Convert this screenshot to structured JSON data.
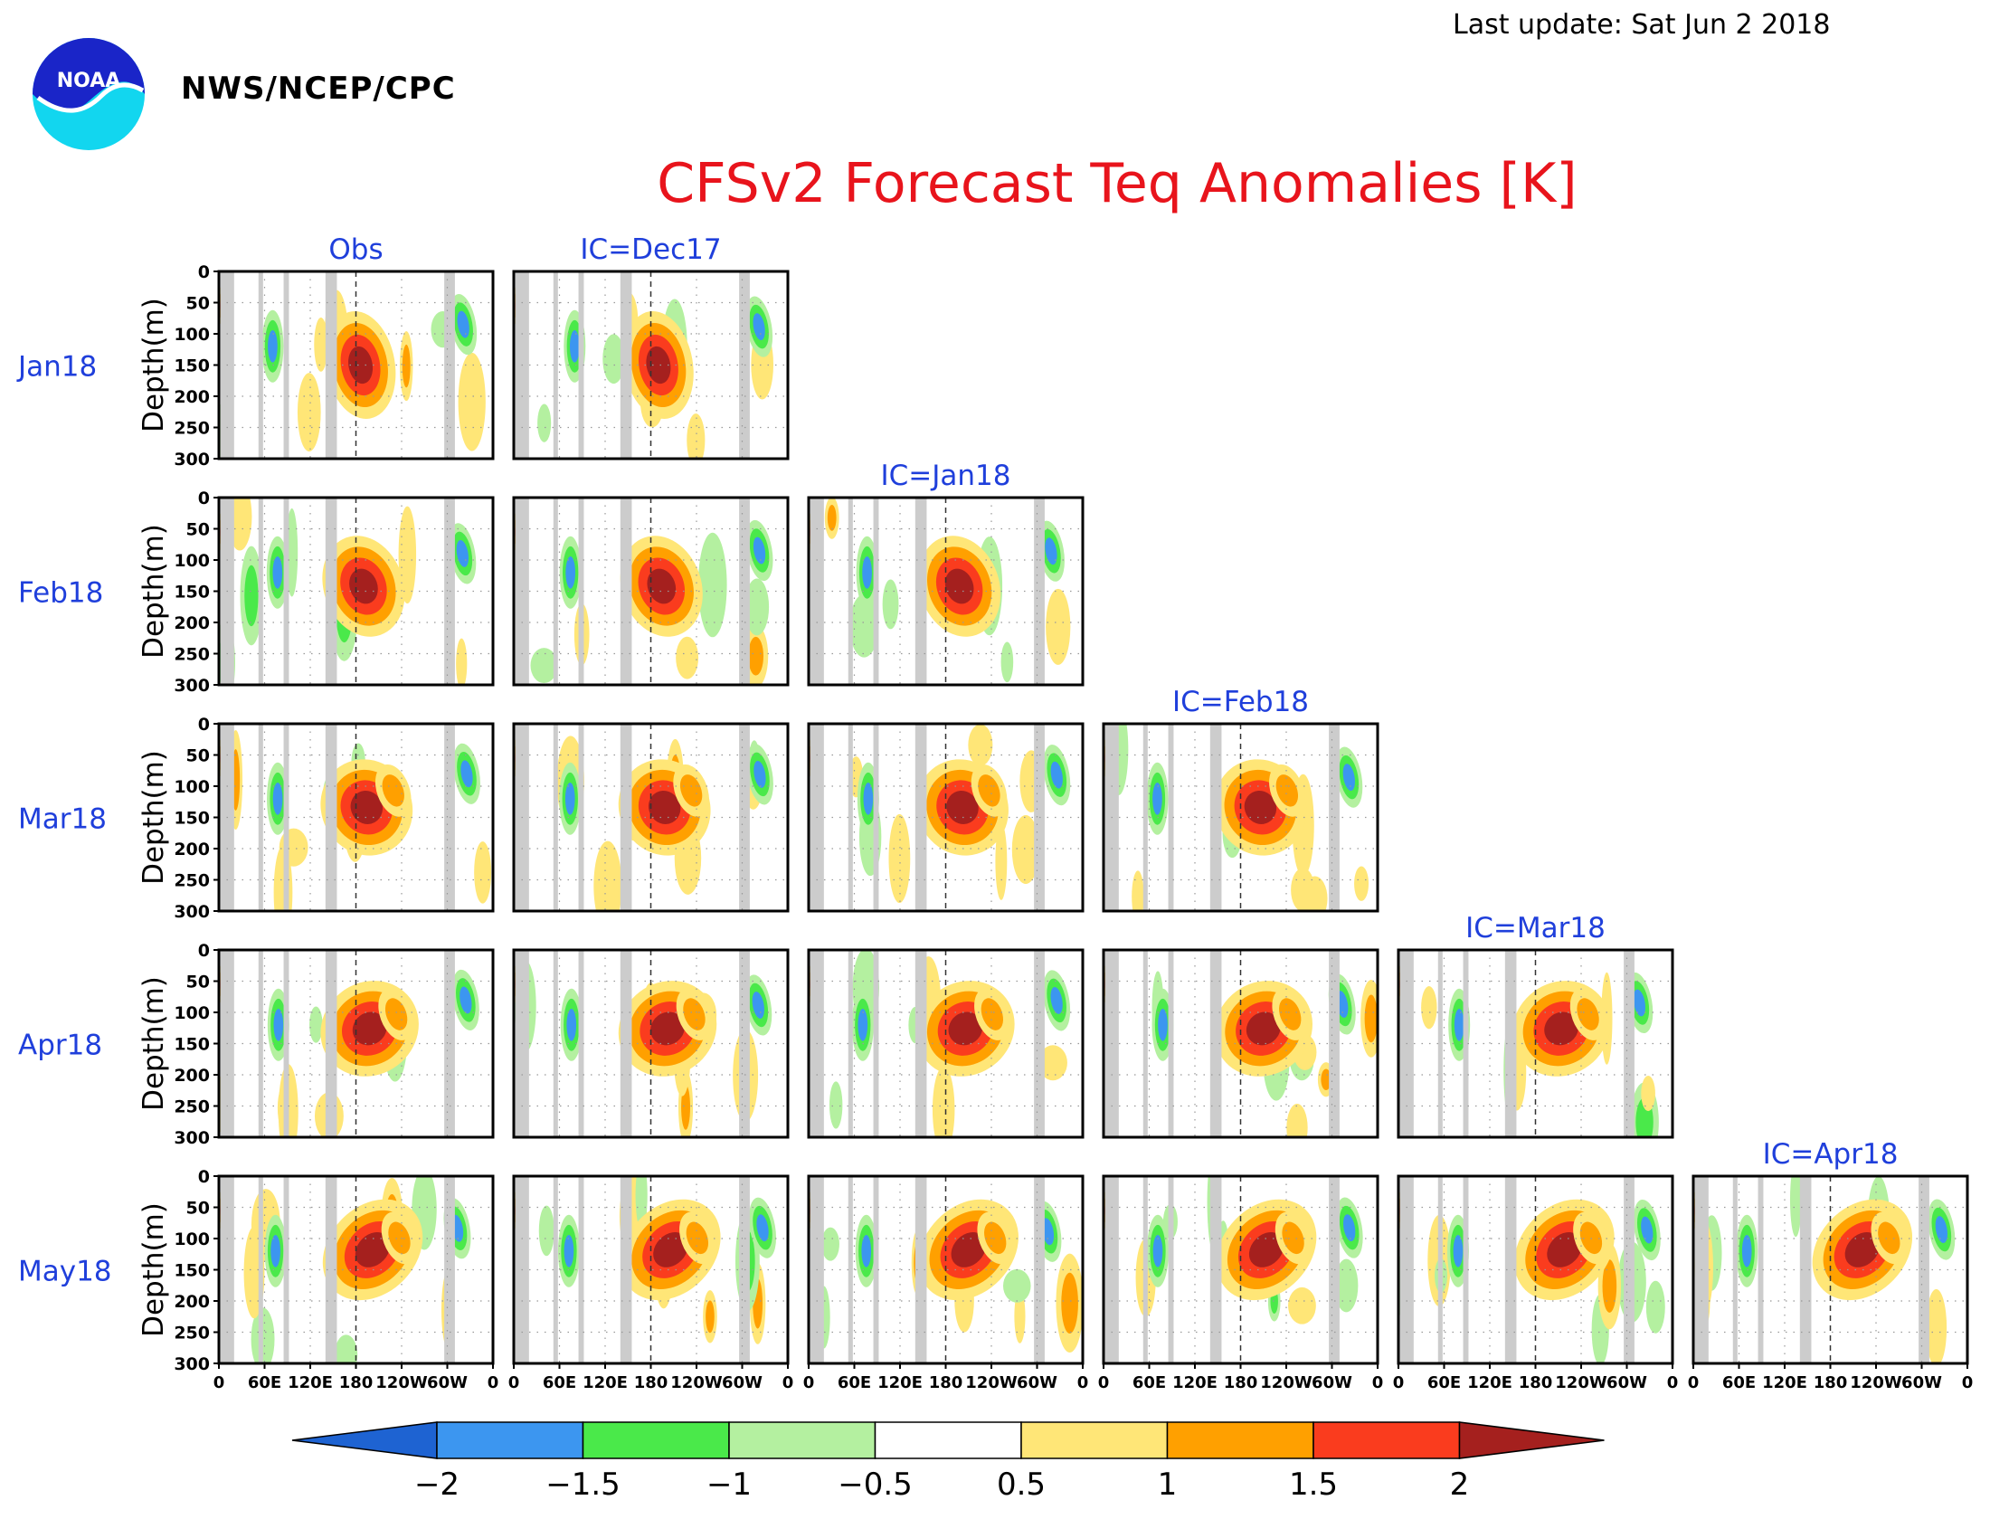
{
  "header": {
    "agency": "NWS/NCEP/CPC",
    "logo_text": "NOAA",
    "last_update": "Last update: Sat Jun 2 2018",
    "title": "CFSv2 Forecast Teq Anomalies [K]"
  },
  "colors": {
    "title": "#e8141c",
    "label_blue": "#1f3fdb",
    "mask": "#cccccc",
    "levels": [
      "#1e63d2",
      "#3c96f0",
      "#4ae94a",
      "#b4f0a0",
      "#ffffff",
      "#ffe677",
      "#ffa000",
      "#fa3c1e",
      "#a5201e"
    ]
  },
  "chart_data": {
    "type": "heatmap",
    "variable": "Teq Anomalies [K]",
    "rows": [
      "Jan18",
      "Feb18",
      "Mar18",
      "Apr18",
      "May18"
    ],
    "columns": [
      "Obs",
      "IC=Dec17",
      "IC=Jan18",
      "IC=Feb18",
      "IC=Mar18",
      "IC=Apr18"
    ],
    "panels_per_row": [
      2,
      3,
      4,
      5,
      6
    ],
    "ylabel": "Depth(m)",
    "y_ticks": [
      "0",
      "50",
      "100",
      "150",
      "200",
      "250",
      "300"
    ],
    "ylim": [
      300,
      0
    ],
    "x_ticks": [
      "0",
      "60E",
      "120E",
      "180",
      "120W",
      "60W",
      "0"
    ],
    "xlim": [
      0,
      360
    ],
    "colorbar": {
      "ticks": [
        "−2",
        "−1.5",
        "−1",
        "−0.5",
        "0.5",
        "1",
        "1.5",
        "2"
      ],
      "levels": [
        -2,
        -1.5,
        -1,
        -0.5,
        0.5,
        1,
        1.5,
        2
      ],
      "extend": "both"
    },
    "land_mask_lon": [
      [
        2,
        20
      ],
      [
        52,
        58
      ],
      [
        85,
        92
      ],
      [
        140,
        155
      ],
      [
        296,
        310
      ]
    ],
    "features": [
      {
        "lon": 190,
        "depth": 150,
        "anomaly": 2.0,
        "description": "warm core near date line in each panel, growing and shoaling eastward over time"
      },
      {
        "lon": 75,
        "depth": 120,
        "anomaly": -1.7,
        "description": "cold anomalies in eastern Indian Ocean"
      },
      {
        "lon": 320,
        "depth": 90,
        "anomaly": -1.8,
        "description": "cold anomalies in Atlantic"
      }
    ]
  }
}
